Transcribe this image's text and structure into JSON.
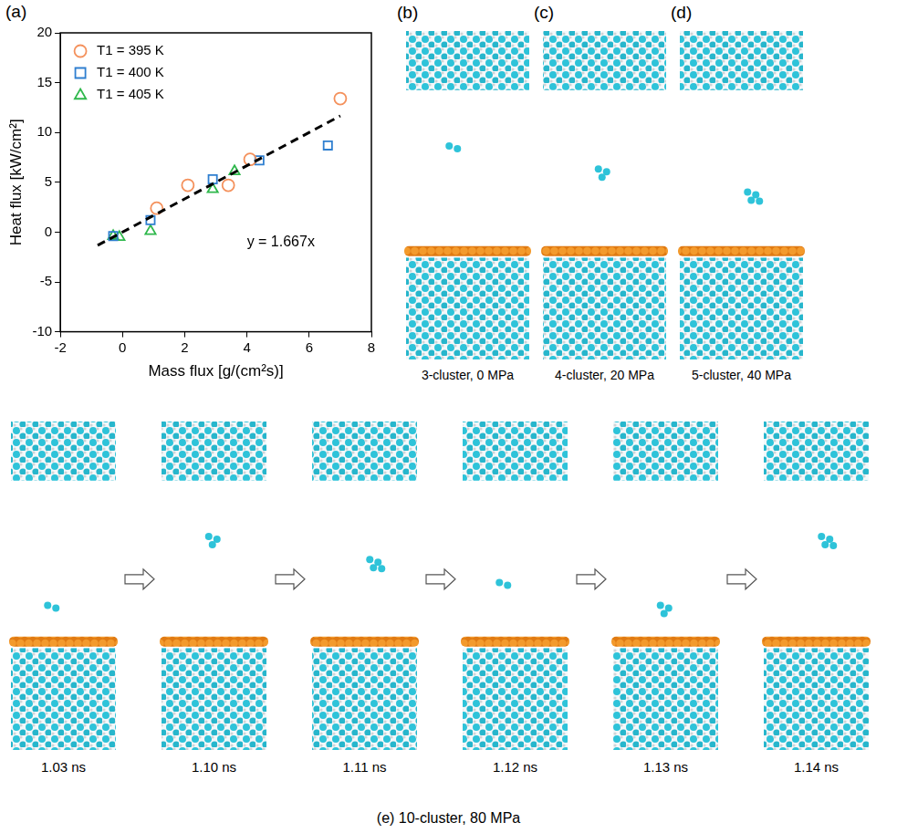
{
  "chart_data": {
    "type": "scatter",
    "panel_label": "(a)",
    "x_label": "Mass flux [g/(cm²s)]",
    "y_label": "Heat flux [kW/cm²]",
    "xlim": [
      -2,
      8
    ],
    "xticks": [
      -2,
      0,
      2,
      4,
      6,
      8
    ],
    "ylim": [
      -10,
      20
    ],
    "yticks": [
      -10,
      -5,
      0,
      5,
      10,
      15,
      20
    ],
    "grid": false,
    "legend": "upper left",
    "series": [
      {
        "name": "T1 = 395 K",
        "color": "#f4915c",
        "marker": "circle",
        "x": [
          1.1,
          2.1,
          3.4,
          4.1,
          7.0
        ],
        "values": [
          2.4,
          4.7,
          4.7,
          7.3,
          13.4
        ]
      },
      {
        "name": "T1 = 400 K",
        "color": "#2f7fd0",
        "marker": "square",
        "x": [
          -0.3,
          0.9,
          2.9,
          4.4,
          6.6
        ],
        "values": [
          -0.4,
          1.2,
          5.3,
          7.2,
          8.7
        ]
      },
      {
        "name": "T1 = 405 K",
        "color": "#2fb84c",
        "marker": "triangle",
        "x": [
          -0.3,
          -0.1,
          0.9,
          2.9,
          3.6
        ],
        "values": [
          -0.4,
          -0.5,
          0.1,
          4.3,
          6.1
        ]
      }
    ],
    "trend_line": {
      "label": "y = 1.667x",
      "color": "#000000",
      "line_style": "dashed",
      "x": [
        -0.8,
        7.0
      ],
      "values": [
        -1.33,
        11.67
      ]
    }
  },
  "snapshots": {
    "panels": [
      {
        "label": "(b)",
        "caption": "3-cluster, 0 MPa"
      },
      {
        "label": "(c)",
        "caption": "4-cluster, 20 MPa"
      },
      {
        "label": "(d)",
        "caption": "5-cluster, 40 MPa"
      }
    ],
    "sequence": {
      "caption": "(e) 10-cluster, 80 MPa",
      "times": [
        "1.03 ns",
        "1.10 ns",
        "1.11 ns",
        "1.12 ns",
        "1.13 ns",
        "1.14 ns"
      ]
    }
  }
}
